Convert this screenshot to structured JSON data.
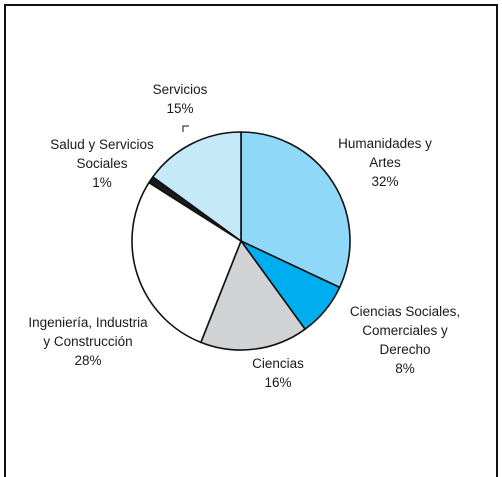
{
  "chart_data": {
    "type": "pie",
    "start_angle_deg": 0,
    "direction": "clockwise",
    "series": [
      {
        "name": "",
        "values": [
          32,
          8,
          16,
          28,
          1,
          15
        ],
        "categories": [
          "Humanidades y Artes",
          "Ciencias Sociales, Comerciales y Derecho",
          "Ciencias",
          "Ingeniería, Industria y Construcción",
          "Salud y Servicios Sociales",
          "Servicios"
        ]
      }
    ],
    "slices": [
      {
        "label_lines": [
          "Humanidades y",
          "Artes"
        ],
        "percent_label": "32%",
        "color": "#8fd8f7"
      },
      {
        "label_lines": [
          "Ciencias Sociales,",
          "Comerciales y",
          "Derecho"
        ],
        "percent_label": "8%",
        "color": "#00aeef"
      },
      {
        "label_lines": [
          "Ciencias"
        ],
        "percent_label": "16%",
        "color": "#d0d2d3"
      },
      {
        "label_lines": [
          "Ingeniería, Industria",
          "y Construcción"
        ],
        "percent_label": "28%",
        "color": "#ffffff"
      },
      {
        "label_lines": [
          "Salud y Servicios",
          "Sociales"
        ],
        "percent_label": "1%",
        "color": "#1a1a1a"
      },
      {
        "label_lines": [
          "Servicios"
        ],
        "percent_label": "15%",
        "color": "#c6e9fa"
      }
    ],
    "legend": "none",
    "grid": false
  }
}
